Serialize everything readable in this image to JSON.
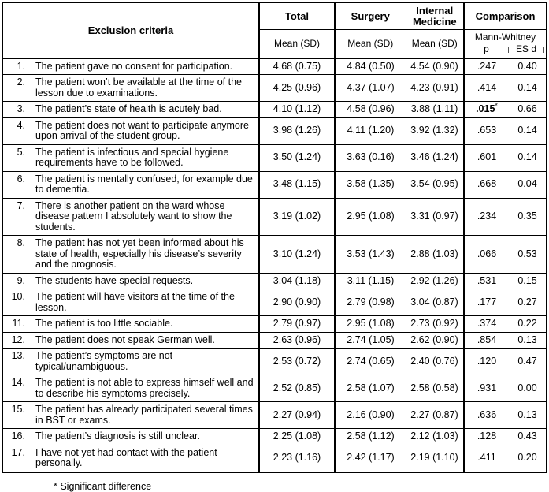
{
  "table": {
    "header": {
      "criteria": "Exclusion criteria",
      "total": "Total",
      "surgery": "Surgery",
      "internal_medicine": "Internal Medicine",
      "comparison": "Comparison",
      "mean_sd": "Mean (SD)",
      "mann_whitney": "Mann-Whitney",
      "p": "p",
      "es_d": "ES d"
    },
    "rows": [
      {
        "num": "1.",
        "text": "The patient gave no consent for participation.",
        "total": "4.68 (0.75)",
        "surgery": "4.84 (0.50)",
        "internal": "4.54 (0.90)",
        "p": ".247",
        "es": "0.40",
        "sig": false
      },
      {
        "num": "2.",
        "text": "The patient won’t be available at the time of the lesson due to examinations.",
        "total": "4.25 (0.96)",
        "surgery": "4.37 (1.07)",
        "internal": "4.23 (0.91)",
        "p": ".414",
        "es": "0.14",
        "sig": false
      },
      {
        "num": "3.",
        "text": "The patient’s state of health is acutely bad.",
        "total": "4.10 (1.12)",
        "surgery": "4.58 (0.96)",
        "internal": "3.88 (1.11)",
        "p": ".015",
        "star": "*",
        "es": "0.66",
        "sig": true
      },
      {
        "num": "4.",
        "text": "The patient does not want to participate anymore upon arrival of the student group.",
        "total": "3.98 (1.26)",
        "surgery": "4.11 (1.20)",
        "internal": "3.92 (1.32)",
        "p": ".653",
        "es": "0.14",
        "sig": false
      },
      {
        "num": "5.",
        "text": "The patient is infectious and special hygiene requirements have to be followed.",
        "total": "3.50 (1.24)",
        "surgery": "3.63 (0.16)",
        "internal": "3.46 (1.24)",
        "p": ".601",
        "es": "0.14",
        "sig": false
      },
      {
        "num": "6.",
        "text": "The patient is mentally confused, for example due to dementia.",
        "total": "3.48 (1.15)",
        "surgery": "3.58 (1.35)",
        "internal": "3.54 (0.95)",
        "p": ".668",
        "es": "0.04",
        "sig": false
      },
      {
        "num": "7.",
        "text": "There is another patient on the ward whose disease pattern I absolutely want to show the students.",
        "total": "3.19 (1.02)",
        "surgery": "2.95 (1.08)",
        "internal": "3.31 (0.97)",
        "p": ".234",
        "es": "0.35",
        "sig": false
      },
      {
        "num": "8.",
        "text": "The patient has not yet been informed about his state of health, especially his disease’s severity and the prognosis.",
        "total": "3.10 (1.24)",
        "surgery": "3.53 (1.43)",
        "internal": "2.88 (1.03)",
        "p": ".066",
        "es": "0.53",
        "sig": false
      },
      {
        "num": "9.",
        "text": "The students have special requests.",
        "total": "3.04 (1.18)",
        "surgery": "3.11 (1.15)",
        "internal": "2.92 (1.26)",
        "p": ".531",
        "es": "0.15",
        "sig": false
      },
      {
        "num": "10.",
        "text": "The patient will have visitors at the time of the lesson.",
        "total": "2.90 (0.90)",
        "surgery": "2.79 (0.98)",
        "internal": "3.04 (0.87)",
        "p": ".177",
        "es": "0.27",
        "sig": false
      },
      {
        "num": "11.",
        "text": "The patient is too little sociable.",
        "total": "2.79 (0.97)",
        "surgery": "2.95 (1.08)",
        "internal": "2.73 (0.92)",
        "p": ".374",
        "es": "0.22",
        "sig": false
      },
      {
        "num": "12.",
        "text": "The patient does not speak German well.",
        "total": "2.63 (0.96)",
        "surgery": "2.74 (1.05)",
        "internal": "2.62 (0.90)",
        "p": ".854",
        "es": "0.13",
        "sig": false
      },
      {
        "num": "13.",
        "text": "The patient’s symptoms are not typical/unambiguous.",
        "total": "2.53 (0.72)",
        "surgery": "2.74 (0.65)",
        "internal": "2.40 (0.76)",
        "p": ".120",
        "es": "0.47",
        "sig": false
      },
      {
        "num": "14.",
        "text": "The patient is not able to express himself well and to describe his symptoms precisely.",
        "total": "2.52 (0.85)",
        "surgery": "2.58 (1.07)",
        "internal": "2.58 (0.58)",
        "p": ".931",
        "es": "0.00",
        "sig": false
      },
      {
        "num": "15.",
        "text": "The patient has already participated several times in BST or exams.",
        "total": "2.27 (0.94)",
        "surgery": "2.16 (0.90)",
        "internal": "2.27 (0.87)",
        "p": ".636",
        "es": "0.13",
        "sig": false
      },
      {
        "num": "16.",
        "text": "The patient’s diagnosis is still unclear.",
        "total": "2.25 (1.08)",
        "surgery": "2.58 (1.12)",
        "internal": "2.12 (1.03)",
        "p": ".128",
        "es": "0.43",
        "sig": false
      },
      {
        "num": "17.",
        "text": "I have not yet had contact with the patient personally.",
        "total": "2.23 (1.16)",
        "surgery": "2.42 (1.17)",
        "internal": "2.19 (1.10)",
        "p": ".411",
        "es": "0.20",
        "sig": false
      }
    ],
    "footnote": "* Significant difference"
  }
}
